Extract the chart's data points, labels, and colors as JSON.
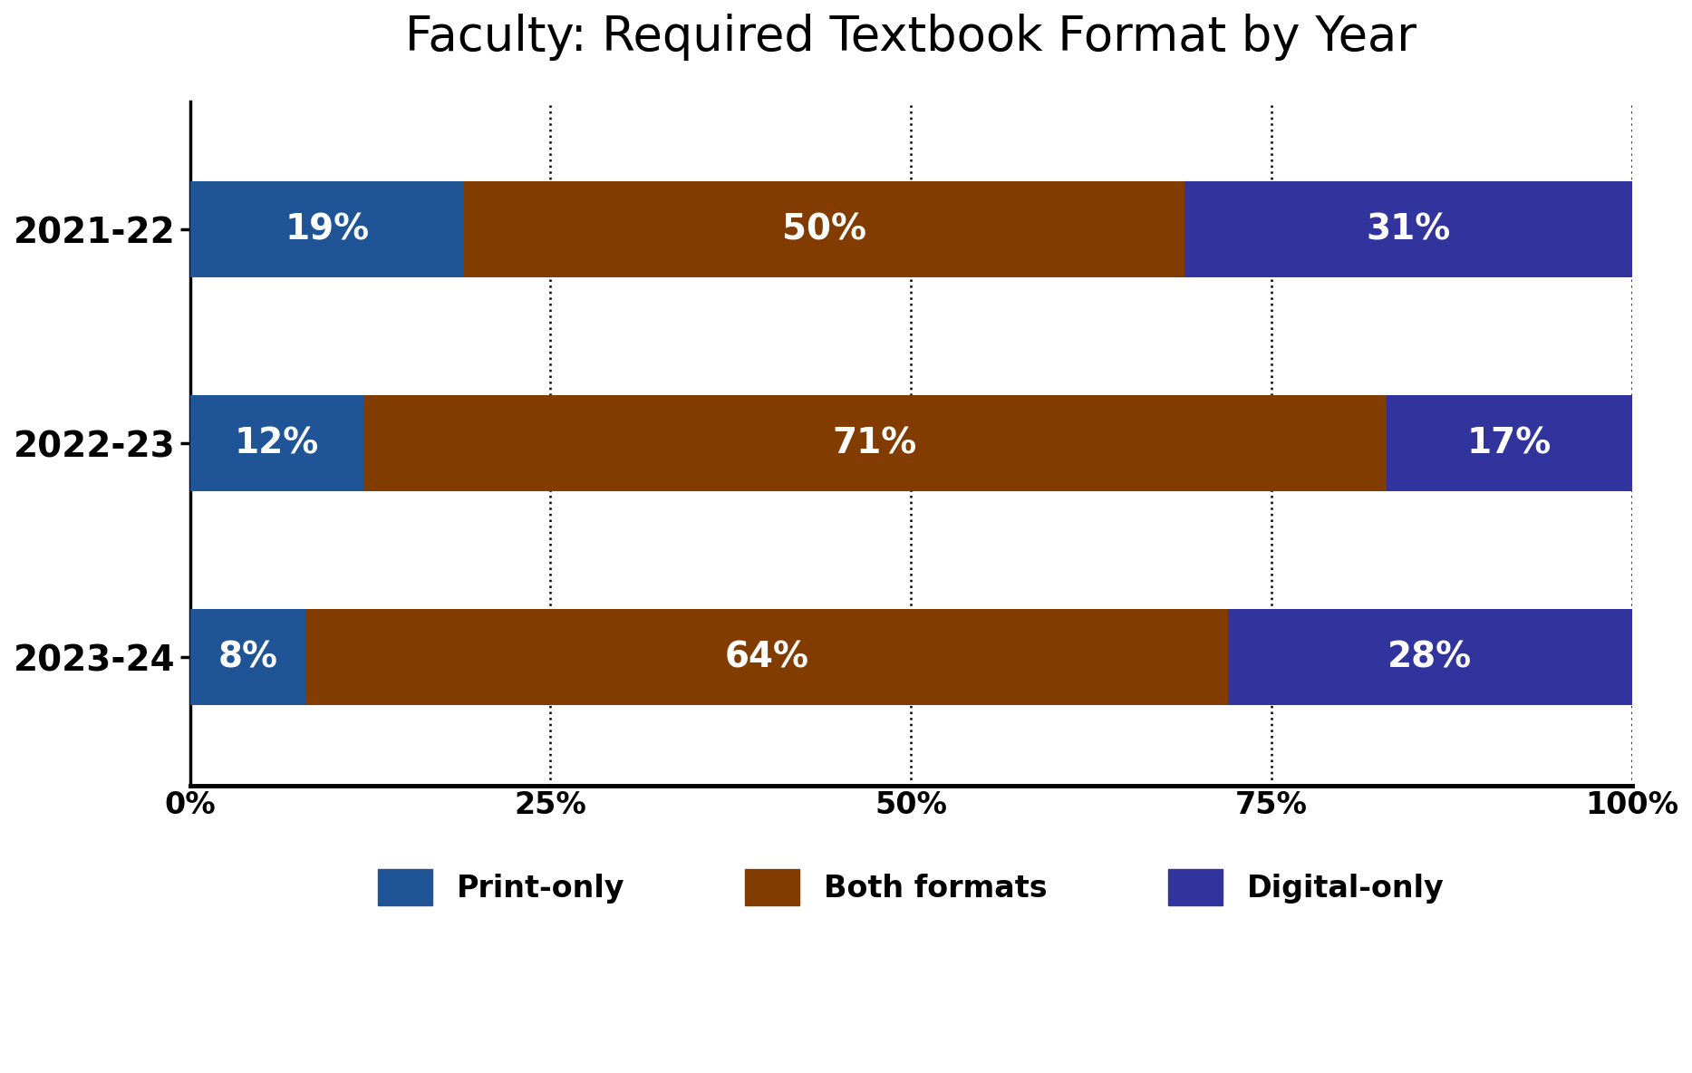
{
  "title": "Faculty: Required Textbook Format by Year",
  "years": [
    "2021-22",
    "2022-23",
    "2023-24"
  ],
  "print_only": [
    19,
    12,
    8
  ],
  "both_formats": [
    50,
    71,
    64
  ],
  "digital_only": [
    31,
    17,
    28
  ],
  "colors": {
    "print_only": "#1F5496",
    "both_formats": "#833C00",
    "digital_only": "#31349C"
  },
  "legend_labels": [
    "Print-only",
    "Both formats",
    "Digital-only"
  ],
  "xlabel_ticks": [
    0,
    25,
    50,
    75,
    100
  ],
  "xlabel_tick_labels": [
    "0%",
    "25%",
    "50%",
    "75%",
    "100%"
  ],
  "title_fontsize": 38,
  "axis_label_fontsize": 24,
  "bar_label_fontsize": 28,
  "legend_fontsize": 24,
  "ytick_fontsize": 28,
  "background_color": "#ffffff",
  "bar_height": 0.45,
  "grid_color": "#000000",
  "dashed_lines": [
    25,
    50,
    75,
    100
  ]
}
